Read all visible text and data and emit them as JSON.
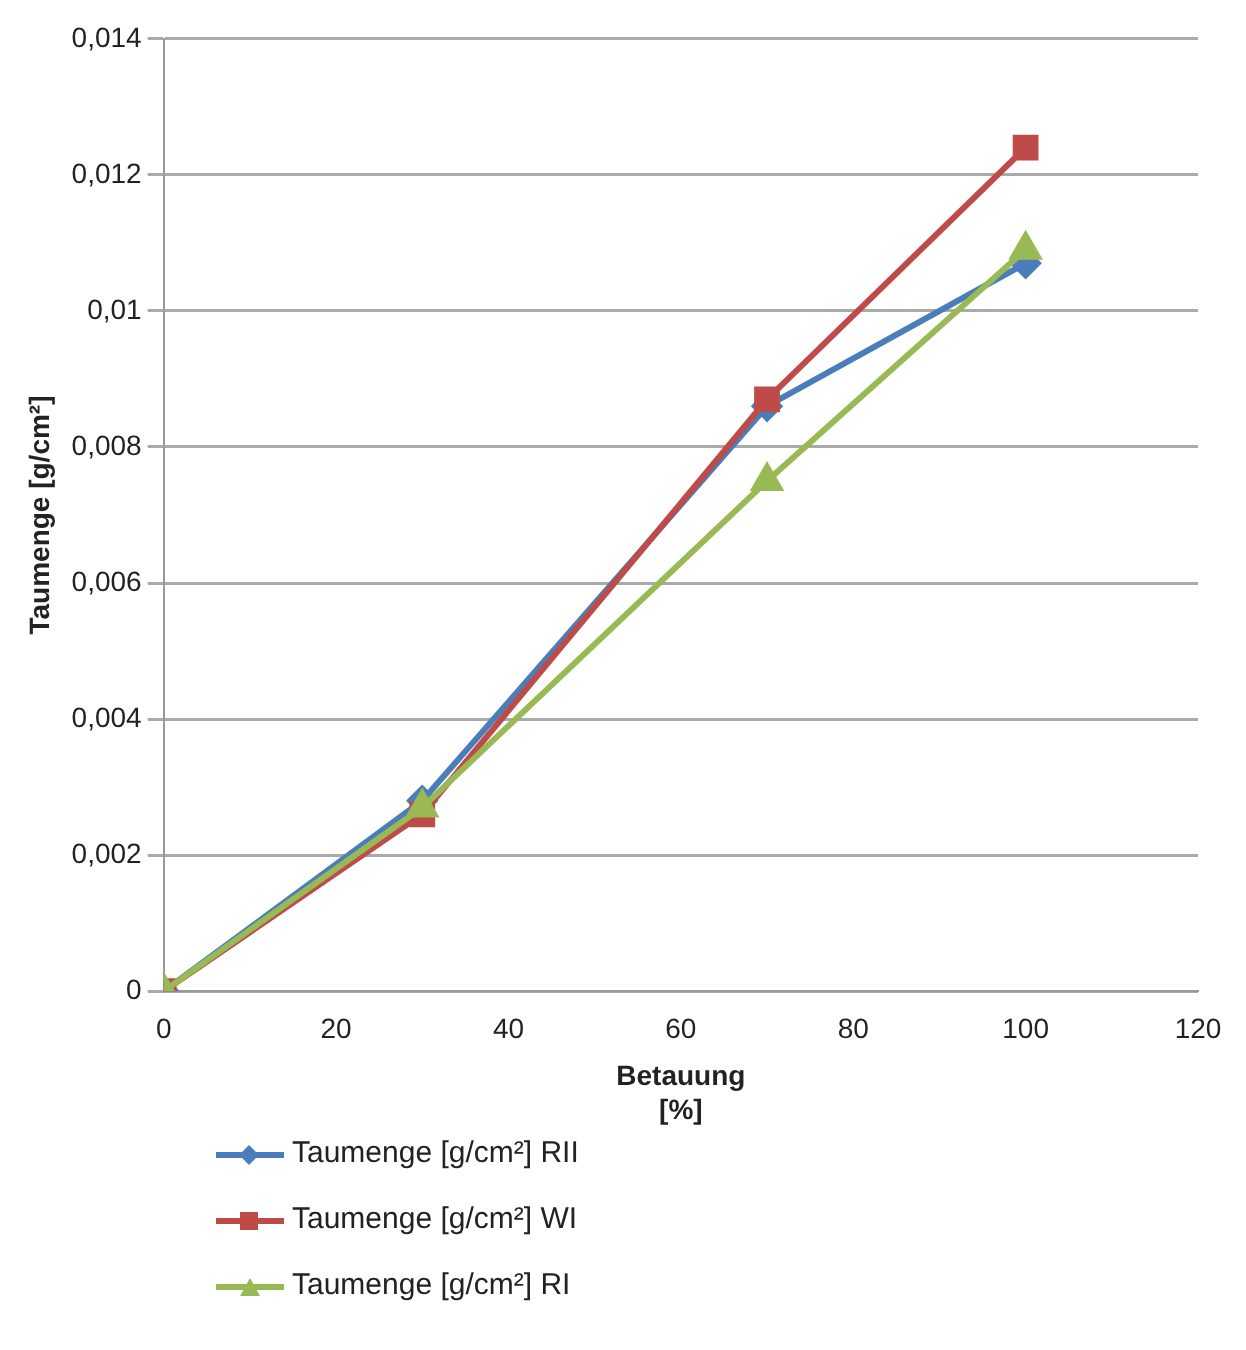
{
  "chart_data": {
    "type": "line",
    "xlabel": "Betauung [%]",
    "ylabel": "Taumenge [g/cm²]",
    "x": [
      0,
      30,
      70,
      100
    ],
    "series": [
      {
        "name": "Taumenge [g/cm²] RII",
        "color": "#4a7ebb",
        "marker": "diamond",
        "values": [
          0,
          0.0028,
          0.0086,
          0.0107
        ]
      },
      {
        "name": "Taumenge [g/cm²] WI",
        "color": "#be4b48",
        "marker": "square",
        "values": [
          0,
          0.0026,
          0.0087,
          0.0124
        ]
      },
      {
        "name": "Taumenge [g/cm²] RI",
        "color": "#98b954",
        "marker": "triangle",
        "values": [
          0,
          0.0027,
          0.0075,
          0.0109
        ]
      }
    ],
    "xlim": [
      0,
      120
    ],
    "xticks": [
      0,
      20,
      40,
      60,
      80,
      100,
      120
    ],
    "ylim": [
      0,
      0.014
    ],
    "yticks": [
      0,
      {
        "value": 0.002,
        "label": "0,002"
      },
      {
        "value": 0.004,
        "label": "0,004"
      },
      {
        "value": 0.006,
        "label": "0,006"
      },
      {
        "value": 0.008,
        "label": "0,008"
      },
      {
        "value": 0.01,
        "label": "0,01"
      },
      {
        "value": 0.012,
        "label": "0,012"
      },
      {
        "value": 0.014,
        "label": "0,014"
      }
    ],
    "grid": "y",
    "legend": "bottom left",
    "line_style": "solid"
  }
}
